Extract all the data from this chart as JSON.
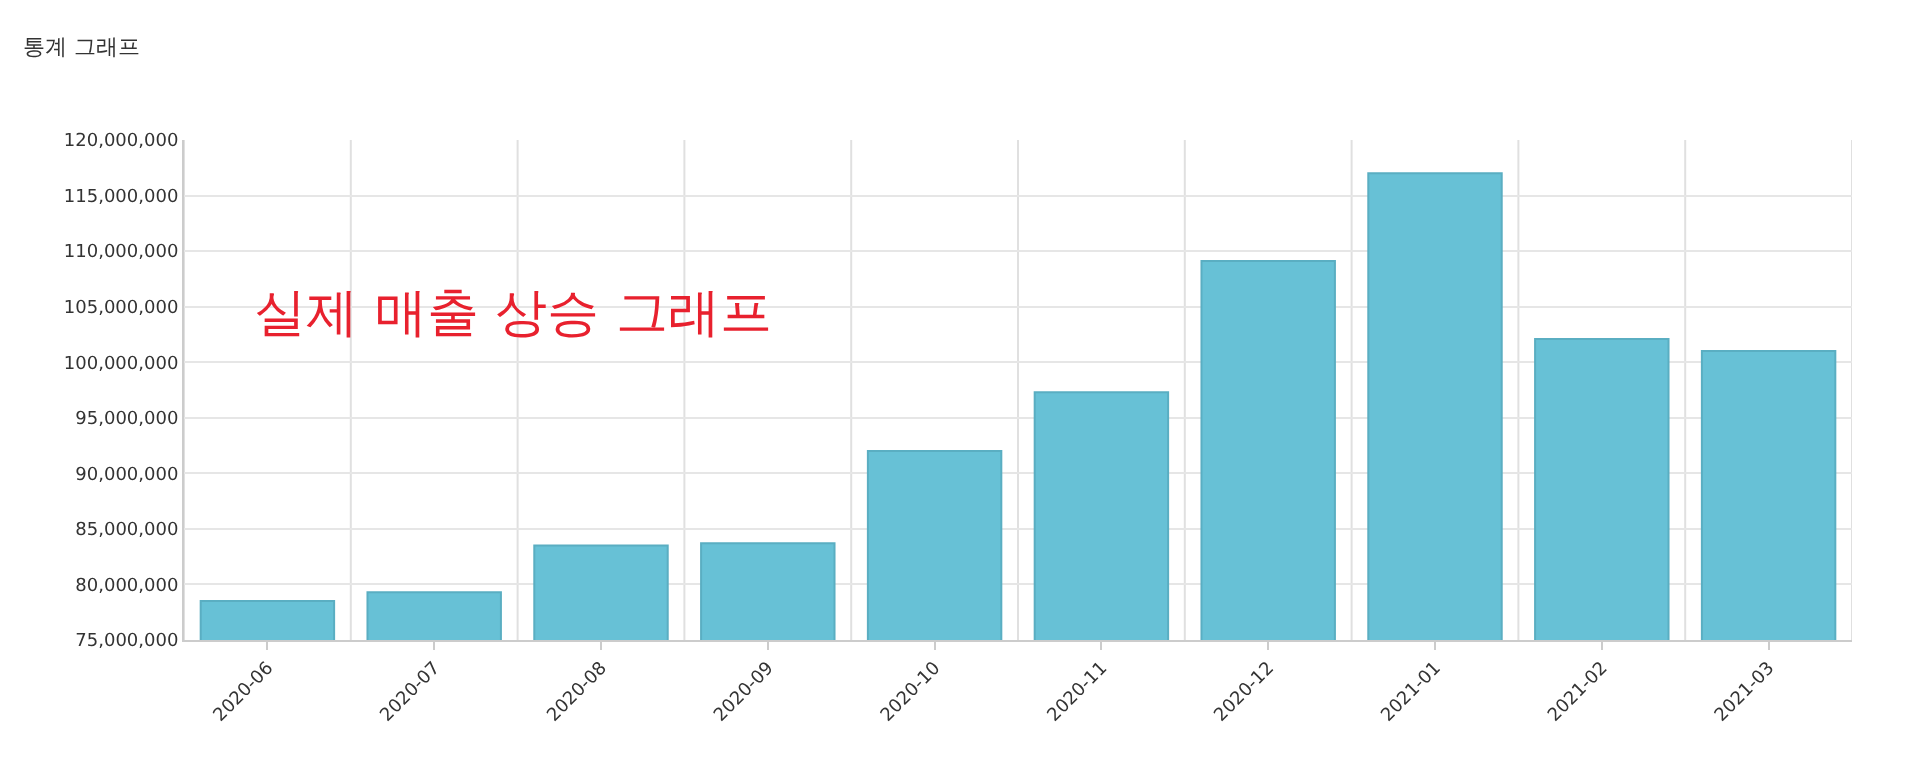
{
  "chart_data": {
    "type": "bar",
    "title": "통계 그래프",
    "categories": [
      "2020-06",
      "2020-07",
      "2020-08",
      "2020-09",
      "2020-10",
      "2020-11",
      "2020-12",
      "2021-01",
      "2021-02",
      "2021-03"
    ],
    "values": [
      78500000,
      79300000,
      83500000,
      83700000,
      92000000,
      97300000,
      109100000,
      117000000,
      102100000,
      101000000
    ],
    "color": "#67c1d6",
    "ylim": [
      75000000,
      120000000
    ],
    "yticks": [
      {
        "value": 75000000,
        "label": "75,000,000"
      },
      {
        "value": 80000000,
        "label": "80,000,000"
      },
      {
        "value": 85000000,
        "label": "85,000,000"
      },
      {
        "value": 90000000,
        "label": "90,000,000"
      },
      {
        "value": 95000000,
        "label": "95,000,000"
      },
      {
        "value": 100000000,
        "label": "100,000,000"
      },
      {
        "value": 105000000,
        "label": "105,000,000"
      },
      {
        "value": 110000000,
        "label": "110,000,000"
      },
      {
        "value": 115000000,
        "label": "115,000,000"
      },
      {
        "value": 120000000,
        "label": "120,000,000"
      }
    ],
    "grid": true,
    "annotations": [
      "실제 매출 상승 그래프"
    ]
  }
}
